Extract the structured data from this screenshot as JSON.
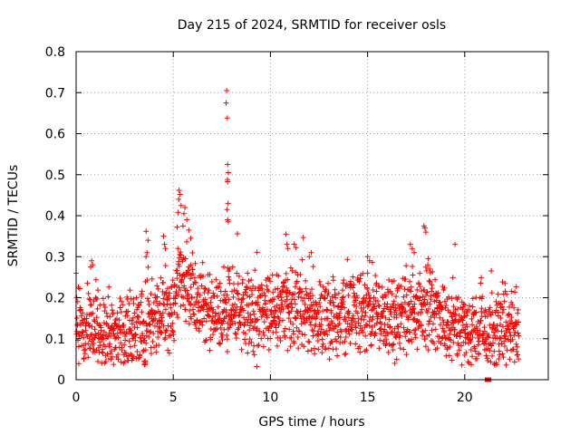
{
  "chart_data": {
    "type": "scatter",
    "title": "Day 215 of 2024, SRMTID for receiver osls",
    "xlabel": "GPS time / hours",
    "ylabel": "SRMTID / TECUs",
    "xlim": [
      0,
      24.3
    ],
    "ylim": [
      0,
      0.8
    ],
    "xticks": [
      "0",
      "5",
      "10",
      "15",
      "20"
    ],
    "xtick_values": [
      0,
      5,
      10,
      15,
      20
    ],
    "yticks": [
      "0",
      "0.1",
      "0.2",
      "0.3",
      "0.4",
      "0.5",
      "0.6",
      "0.7",
      "0.8"
    ],
    "ytick_values": [
      0,
      0.1,
      0.2,
      0.3,
      0.4,
      0.5,
      0.6,
      0.7,
      0.8
    ],
    "grid": true,
    "marker": "+",
    "color": "#ff0000",
    "series": [
      {
        "name": "SRMTID",
        "baseline": [
          [
            0.0,
            0.12
          ],
          [
            1.0,
            0.12
          ],
          [
            2.0,
            0.11
          ],
          [
            3.0,
            0.11
          ],
          [
            3.6,
            0.13
          ],
          [
            4.5,
            0.15
          ],
          [
            5.0,
            0.17
          ],
          [
            5.3,
            0.25
          ],
          [
            5.8,
            0.22
          ],
          [
            6.5,
            0.16
          ],
          [
            7.5,
            0.17
          ],
          [
            8.5,
            0.16
          ],
          [
            10.0,
            0.17
          ],
          [
            11.0,
            0.18
          ],
          [
            12.0,
            0.16
          ],
          [
            13.0,
            0.14
          ],
          [
            14.0,
            0.15
          ],
          [
            15.0,
            0.17
          ],
          [
            16.0,
            0.15
          ],
          [
            17.0,
            0.16
          ],
          [
            18.0,
            0.18
          ],
          [
            19.0,
            0.14
          ],
          [
            20.0,
            0.12
          ],
          [
            21.0,
            0.11
          ],
          [
            22.8,
            0.13
          ]
        ],
        "highlights": [
          [
            7.75,
            0.705
          ],
          [
            7.72,
            0.675
          ],
          [
            7.78,
            0.638
          ],
          [
            7.8,
            0.525
          ],
          [
            7.83,
            0.505
          ],
          [
            7.79,
            0.488
          ],
          [
            7.8,
            0.483
          ],
          [
            7.82,
            0.43
          ],
          [
            7.77,
            0.415
          ],
          [
            7.8,
            0.39
          ],
          [
            7.83,
            0.385
          ],
          [
            5.3,
            0.462
          ],
          [
            5.35,
            0.452
          ],
          [
            5.28,
            0.44
          ],
          [
            5.4,
            0.425
          ],
          [
            5.25,
            0.408
          ],
          [
            5.6,
            0.42
          ],
          [
            5.55,
            0.405
          ],
          [
            5.7,
            0.39
          ],
          [
            5.5,
            0.375
          ],
          [
            5.2,
            0.372
          ],
          [
            5.8,
            0.365
          ],
          [
            5.9,
            0.345
          ],
          [
            3.6,
            0.362
          ],
          [
            3.7,
            0.34
          ],
          [
            4.5,
            0.35
          ],
          [
            4.55,
            0.33
          ],
          [
            4.6,
            0.32
          ],
          [
            3.65,
            0.31
          ],
          [
            3.6,
            0.3
          ],
          [
            17.9,
            0.375
          ],
          [
            17.95,
            0.37
          ],
          [
            18.0,
            0.36
          ],
          [
            17.2,
            0.33
          ],
          [
            17.3,
            0.32
          ],
          [
            17.4,
            0.31
          ],
          [
            19.5,
            0.33
          ],
          [
            10.8,
            0.355
          ],
          [
            10.85,
            0.33
          ],
          [
            10.9,
            0.32
          ],
          [
            0.0,
            0.26
          ],
          [
            0.8,
            0.29
          ],
          [
            0.85,
            0.28
          ],
          [
            0.75,
            0.275
          ],
          [
            9.3,
            0.032
          ],
          [
            3.5,
            0.045
          ],
          [
            1.8,
            0.05
          ],
          [
            16.5,
            0.05
          ],
          [
            16.4,
            0.04
          ],
          [
            20.0,
            0.06
          ],
          [
            22.7,
            0.06
          ],
          [
            7.6,
            0.275
          ],
          [
            7.9,
            0.27
          ],
          [
            12.0,
            0.3
          ],
          [
            12.1,
            0.31
          ],
          [
            15.0,
            0.3
          ],
          [
            15.1,
            0.29
          ],
          [
            18.1,
            0.28
          ],
          [
            18.2,
            0.27
          ]
        ],
        "outlier_bar": [
          [
            21.15,
            0.0
          ],
          [
            21.2,
            0.0
          ],
          [
            21.25,
            0.0
          ]
        ]
      }
    ]
  }
}
